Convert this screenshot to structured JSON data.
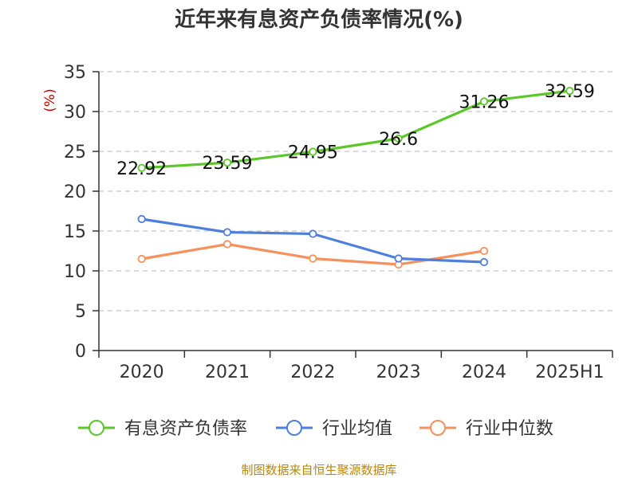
{
  "chart_data": {
    "type": "line",
    "title": "近年来有息资产负债率情况(%)",
    "ylabel": "(%)",
    "xlabel": "",
    "categories": [
      "2020",
      "2021",
      "2022",
      "2023",
      "2024",
      "2025H1"
    ],
    "ylim": [
      0,
      35
    ],
    "yticks": [
      0,
      5,
      10,
      15,
      20,
      25,
      30,
      35
    ],
    "grid": true,
    "legend_position": "bottom",
    "series": [
      {
        "name": "有息资产负债率",
        "color": "#5cc72a",
        "values": [
          22.92,
          23.59,
          24.95,
          26.6,
          31.26,
          32.59
        ],
        "labels": [
          "22.92",
          "23.59",
          "24.95",
          "26.6",
          "31.26",
          "32.59"
        ]
      },
      {
        "name": "行业均值",
        "color": "#4f7fdc",
        "values": [
          16.5,
          14.85,
          14.65,
          11.55,
          11.1,
          null
        ],
        "labels": []
      },
      {
        "name": "行业中位数",
        "color": "#f5915d",
        "values": [
          11.5,
          13.35,
          11.55,
          10.8,
          12.5,
          null
        ],
        "labels": []
      }
    ],
    "source": "制图数据来自恒生聚源数据库"
  }
}
